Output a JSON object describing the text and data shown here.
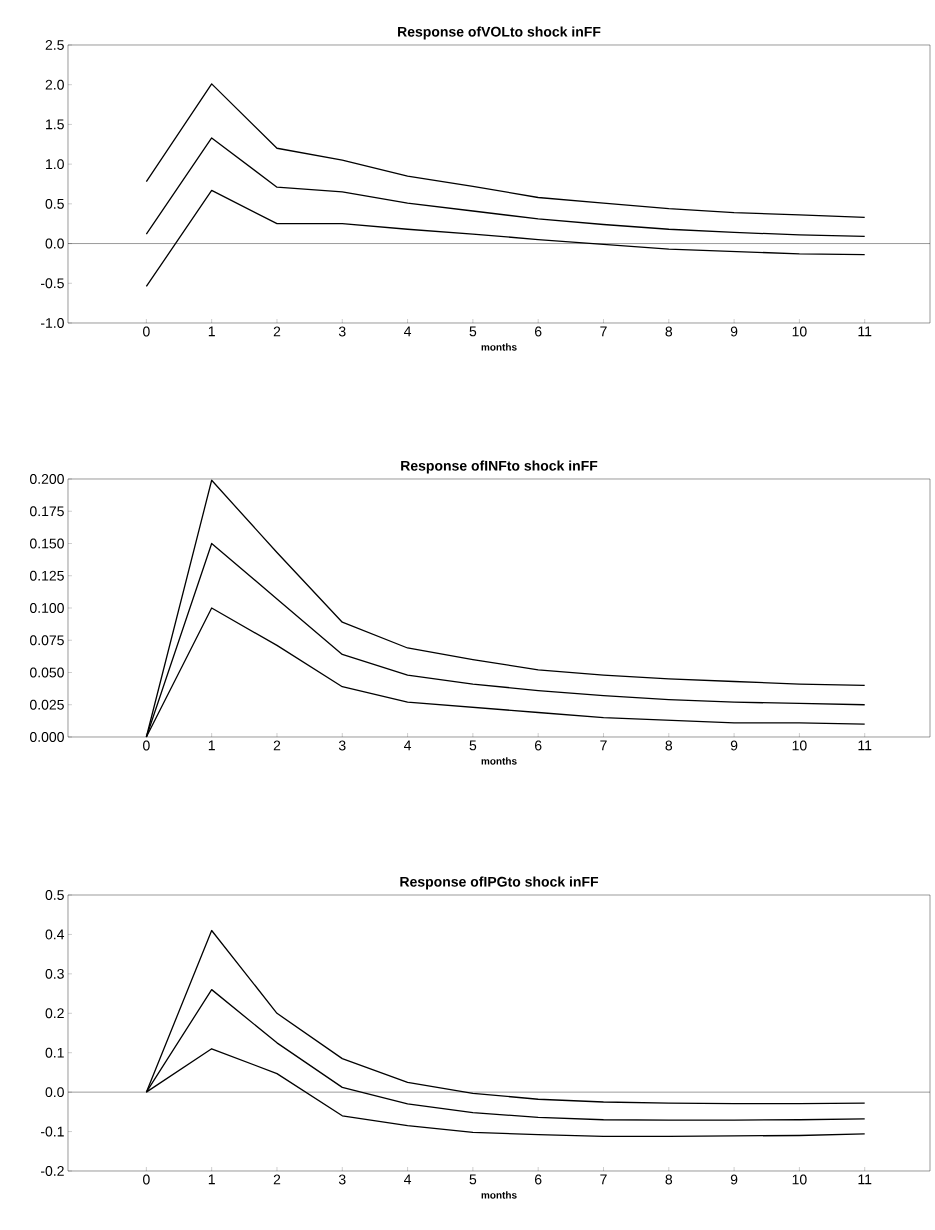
{
  "chart_data": [
    {
      "type": "line",
      "title": "Response ofVOLto shock inFF",
      "xlabel": "months",
      "x": [
        0,
        1,
        2,
        3,
        4,
        5,
        6,
        7,
        8,
        9,
        10,
        11
      ],
      "xlim": [
        -1.2,
        12
      ],
      "xticks": [
        0,
        1,
        2,
        3,
        4,
        5,
        6,
        7,
        8,
        9,
        10,
        11
      ],
      "ylim": [
        -1.0,
        2.5
      ],
      "yticks": [
        {
          "value": -1.0,
          "label": "-1.0"
        },
        {
          "value": -0.5,
          "label": "-0.5"
        },
        {
          "value": 0.0,
          "label": "0.0"
        },
        {
          "value": 0.5,
          "label": "0.5"
        },
        {
          "value": 1.0,
          "label": "1.0"
        },
        {
          "value": 1.5,
          "label": "1.5"
        },
        {
          "value": 2.0,
          "label": "2.0"
        },
        {
          "value": 2.5,
          "label": "2.5"
        }
      ],
      "ref_lines": [
        {
          "axis": "y",
          "value": 0,
          "label": null,
          "color": "#000000"
        }
      ],
      "series": [
        {
          "color": "#000000",
          "values": [
            0.78,
            2.01,
            1.2,
            1.05,
            0.85,
            0.72,
            0.58,
            0.51,
            0.44,
            0.39,
            0.36,
            0.33
          ]
        },
        {
          "color": "#000000",
          "values": [
            0.12,
            1.33,
            0.71,
            0.65,
            0.51,
            0.41,
            0.31,
            0.24,
            0.18,
            0.14,
            0.11,
            0.09
          ]
        },
        {
          "color": "#000000",
          "values": [
            -0.54,
            0.67,
            0.25,
            0.25,
            0.18,
            0.12,
            0.05,
            -0.01,
            -0.07,
            -0.1,
            -0.13,
            -0.14
          ]
        }
      ]
    },
    {
      "type": "line",
      "title": "Response ofINFto shock inFF",
      "xlabel": "months",
      "x": [
        0,
        1,
        2,
        3,
        4,
        5,
        6,
        7,
        8,
        9,
        10,
        11
      ],
      "xlim": [
        -1.2,
        12
      ],
      "xticks": [
        0,
        1,
        2,
        3,
        4,
        5,
        6,
        7,
        8,
        9,
        10,
        11
      ],
      "ylim": [
        0.0,
        0.2
      ],
      "yticks": [
        {
          "value": 0.0,
          "label": "0.000"
        },
        {
          "value": 0.025,
          "label": "0.025"
        },
        {
          "value": 0.05,
          "label": "0.050"
        },
        {
          "value": 0.075,
          "label": "0.075"
        },
        {
          "value": 0.1,
          "label": "0.100"
        },
        {
          "value": 0.125,
          "label": "0.125"
        },
        {
          "value": 0.15,
          "label": "0.150"
        },
        {
          "value": 0.175,
          "label": "0.175"
        },
        {
          "value": 0.2,
          "label": "0.200"
        }
      ],
      "series": [
        {
          "color": "#000000",
          "values": [
            0,
            0.199,
            0.143,
            0.089,
            0.069,
            0.06,
            0.052,
            0.048,
            0.045,
            0.043,
            0.041,
            0.04
          ]
        },
        {
          "color": "#000000",
          "values": [
            0,
            0.15,
            0.107,
            0.064,
            0.048,
            0.041,
            0.036,
            0.032,
            0.029,
            0.027,
            0.026,
            0.025
          ]
        },
        {
          "color": "#000000",
          "values": [
            0,
            0.1,
            0.071,
            0.039,
            0.027,
            0.023,
            0.019,
            0.015,
            0.013,
            0.011,
            0.011,
            0.01
          ]
        }
      ]
    },
    {
      "type": "line",
      "title": "Response ofIPGto shock inFF",
      "xlabel": "months",
      "x": [
        0,
        1,
        2,
        3,
        4,
        5,
        6,
        7,
        8,
        9,
        10,
        11
      ],
      "xlim": [
        -1.2,
        12
      ],
      "xticks": [
        0,
        1,
        2,
        3,
        4,
        5,
        6,
        7,
        8,
        9,
        10,
        11
      ],
      "ylim": [
        -0.2,
        0.5
      ],
      "yticks": [
        {
          "value": -0.2,
          "label": "-0.2"
        },
        {
          "value": -0.1,
          "label": "-0.1"
        },
        {
          "value": 0.0,
          "label": "0.0"
        },
        {
          "value": 0.1,
          "label": "0.1"
        },
        {
          "value": 0.2,
          "label": "0.2"
        },
        {
          "value": 0.3,
          "label": "0.3"
        },
        {
          "value": 0.4,
          "label": "0.4"
        },
        {
          "value": 0.5,
          "label": "0.5"
        }
      ],
      "ref_lines": [
        {
          "axis": "y",
          "value": 0,
          "label": null,
          "color": "#000000"
        }
      ],
      "series": [
        {
          "color": "#000000",
          "values": [
            0,
            0.41,
            0.2,
            0.085,
            0.025,
            -0.003,
            -0.018,
            -0.025,
            -0.028,
            -0.029,
            -0.029,
            -0.028
          ]
        },
        {
          "color": "#000000",
          "values": [
            0,
            0.26,
            0.125,
            0.012,
            -0.03,
            -0.052,
            -0.064,
            -0.07,
            -0.071,
            -0.071,
            -0.07,
            -0.068
          ]
        },
        {
          "color": "#000000",
          "values": [
            0,
            0.11,
            0.047,
            -0.06,
            -0.085,
            -0.102,
            -0.108,
            -0.112,
            -0.112,
            -0.111,
            -0.11,
            -0.106
          ]
        }
      ]
    }
  ]
}
